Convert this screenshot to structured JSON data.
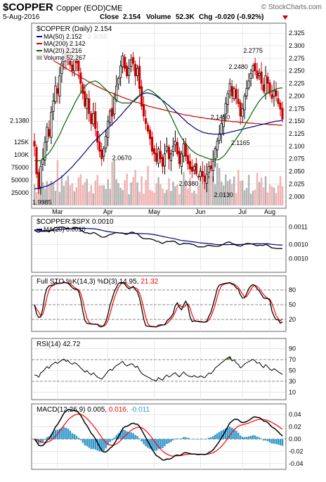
{
  "header": {
    "symbol": "$COPPER",
    "name": "Copper (EOD)",
    "exchange": "CME",
    "watermark": "© StockCharts.com",
    "date": "5-Aug-2016",
    "quote": {
      "close_label": "Close",
      "close": "2.154",
      "volume_label": "Volume",
      "volume": "52.3K",
      "chg_label": "Chg",
      "chg": "-0.020 (-0.92%)"
    }
  },
  "months": [
    "Mar",
    "Apr",
    "May",
    "Jun",
    "Jul",
    "Aug"
  ],
  "colors": {
    "up": "#000000",
    "down": "#cc0000",
    "ma50": "#000080",
    "ma200": "#cc0000",
    "ma20": "#006600",
    "vol_up": "#b4b4b4",
    "vol_down": "#f0b4b4",
    "stoch_d": "#ff0000",
    "hist": "#3399cc",
    "grid": "#d8d8d8"
  },
  "chart_data": [
    {
      "type": "candlestick",
      "title": "$COPPER (Daily) 2.154",
      "legend": [
        {
          "label": "MA(50) 2.152",
          "color": "#000080"
        },
        {
          "label": "MA(200) 2.142",
          "color": "#cc0000"
        },
        {
          "label": "MA(20) 2.216",
          "color": "#006600"
        },
        {
          "label": "Volume 52,267",
          "color": "#b4b4b4"
        }
      ],
      "y_ticks": [
        "2.325",
        "2.300",
        "2.275",
        "2.250",
        "2.225",
        "2.200",
        "2.175",
        "2.150",
        "2.125",
        "2.100",
        "2.075",
        "2.050",
        "2.025",
        "2.000"
      ],
      "ylim": [
        1.985,
        2.335
      ],
      "volume_ticks": [
        "125K",
        "100K",
        "75000",
        "50000",
        "25000"
      ],
      "annotations": [
        "2.1380",
        "2.3055",
        "2.0670",
        "2.0380",
        "2.1450",
        "2.0130",
        "2.2480",
        "2.2775",
        "2.1165",
        "1.9985"
      ],
      "close": [
        2.1,
        2.045,
        2.015,
        2.06,
        2.075,
        2.108,
        2.138,
        2.12,
        2.168,
        2.19,
        2.22,
        2.205,
        2.24,
        2.265,
        2.29,
        2.27,
        2.285,
        2.262,
        2.25,
        2.274,
        2.266,
        2.25,
        2.225,
        2.205,
        2.18,
        2.195,
        2.165,
        2.145,
        2.165,
        2.135,
        2.108,
        2.09,
        2.075,
        2.095,
        2.12,
        2.15,
        2.17,
        2.16,
        2.195,
        2.22,
        2.235,
        2.26,
        2.28,
        2.255,
        2.24,
        2.255,
        2.272,
        2.265,
        2.24,
        2.255,
        2.215,
        2.18,
        2.16,
        2.145,
        2.13,
        2.115,
        2.09,
        2.085,
        2.07,
        2.095,
        2.075,
        2.06,
        2.085,
        2.1,
        2.075,
        2.085,
        2.1,
        2.11,
        2.085,
        2.065,
        2.085,
        2.105,
        2.08,
        2.065,
        2.055,
        2.05,
        2.06,
        2.045,
        2.04,
        2.05,
        2.04,
        2.03,
        2.045,
        2.06,
        2.055,
        2.07,
        2.095,
        2.11,
        2.125,
        2.145,
        2.16,
        2.185,
        2.205,
        2.225,
        2.2,
        2.215,
        2.195,
        2.185,
        2.16,
        2.175,
        2.2,
        2.215,
        2.23,
        2.245,
        2.26,
        2.25,
        2.235,
        2.245,
        2.225,
        2.21,
        2.24,
        2.225,
        2.205,
        2.195,
        2.21,
        2.2,
        2.185,
        2.174,
        2.154
      ],
      "ma20": [
        2.071,
        2.072,
        2.071,
        2.072,
        2.074,
        2.078,
        2.083,
        2.087,
        2.093,
        2.1,
        2.108,
        2.115,
        2.123,
        2.132,
        2.142,
        2.15,
        2.159,
        2.167,
        2.175,
        2.184,
        2.192,
        2.199,
        2.206,
        2.213,
        2.218,
        2.223,
        2.226,
        2.228,
        2.229,
        2.23,
        2.228,
        2.225,
        2.221,
        2.217,
        2.213,
        2.209,
        2.204,
        2.199,
        2.195,
        2.192,
        2.189,
        2.187,
        2.186,
        2.186,
        2.186,
        2.186,
        2.187,
        2.189,
        2.192,
        2.196,
        2.201,
        2.205,
        2.208,
        2.211,
        2.213,
        2.212,
        2.209,
        2.206,
        2.202,
        2.199,
        2.195,
        2.19,
        2.184,
        2.176,
        2.168,
        2.16,
        2.151,
        2.142,
        2.133,
        2.124,
        2.117,
        2.111,
        2.105,
        2.1,
        2.095,
        2.091,
        2.088,
        2.085,
        2.083,
        2.081,
        2.08,
        2.078,
        2.077,
        2.075,
        2.074,
        2.073,
        2.073,
        2.073,
        2.074,
        2.077,
        2.08,
        2.085,
        2.091,
        2.097,
        2.103,
        2.109,
        2.115,
        2.121,
        2.127,
        2.134,
        2.141,
        2.148,
        2.155,
        2.163,
        2.17,
        2.177,
        2.184,
        2.19,
        2.195,
        2.199,
        2.203,
        2.206,
        2.208,
        2.21,
        2.212,
        2.214,
        2.215,
        2.216,
        2.216
      ],
      "ma50": [
        2.015,
        2.016,
        2.016,
        2.017,
        2.018,
        2.02,
        2.021,
        2.023,
        2.025,
        2.027,
        2.03,
        2.033,
        2.036,
        2.039,
        2.043,
        2.047,
        2.051,
        2.055,
        2.059,
        2.064,
        2.069,
        2.073,
        2.078,
        2.083,
        2.088,
        2.093,
        2.098,
        2.103,
        2.108,
        2.112,
        2.116,
        2.12,
        2.124,
        2.128,
        2.132,
        2.136,
        2.14,
        2.144,
        2.148,
        2.152,
        2.157,
        2.161,
        2.166,
        2.171,
        2.176,
        2.18,
        2.185,
        2.19,
        2.194,
        2.198,
        2.201,
        2.203,
        2.205,
        2.206,
        2.206,
        2.205,
        2.204,
        2.202,
        2.2,
        2.197,
        2.194,
        2.191,
        2.188,
        2.184,
        2.181,
        2.177,
        2.174,
        2.17,
        2.166,
        2.162,
        2.158,
        2.154,
        2.15,
        2.146,
        2.143,
        2.14,
        2.137,
        2.134,
        2.132,
        2.13,
        2.128,
        2.127,
        2.126,
        2.125,
        2.125,
        2.124,
        2.124,
        2.124,
        2.124,
        2.124,
        2.125,
        2.126,
        2.127,
        2.128,
        2.129,
        2.13,
        2.131,
        2.132,
        2.133,
        2.134,
        2.135,
        2.136,
        2.137,
        2.138,
        2.139,
        2.14,
        2.141,
        2.142,
        2.143,
        2.144,
        2.145,
        2.146,
        2.147,
        2.148,
        2.149,
        2.15,
        2.15,
        2.151,
        2.152
      ],
      "ma200": [
        2.292,
        2.29,
        2.288,
        2.285,
        2.283,
        2.281,
        2.278,
        2.276,
        2.273,
        2.271,
        2.268,
        2.266,
        2.263,
        2.261,
        2.258,
        2.255,
        2.253,
        2.25,
        2.248,
        2.245,
        2.243,
        2.24,
        2.238,
        2.235,
        2.233,
        2.23,
        2.228,
        2.226,
        2.223,
        2.221,
        2.219,
        2.217,
        2.215,
        2.213,
        2.211,
        2.209,
        2.207,
        2.206,
        2.204,
        2.202,
        2.201,
        2.199,
        2.197,
        2.196,
        2.194,
        2.193,
        2.191,
        2.19,
        2.188,
        2.187,
        2.186,
        2.184,
        2.183,
        2.182,
        2.18,
        2.179,
        2.178,
        2.177,
        2.176,
        2.175,
        2.174,
        2.173,
        2.172,
        2.171,
        2.17,
        2.169,
        2.168,
        2.167,
        2.166,
        2.165,
        2.164,
        2.163,
        2.162,
        2.162,
        2.161,
        2.16,
        2.159,
        2.159,
        2.158,
        2.157,
        2.157,
        2.156,
        2.155,
        2.155,
        2.154,
        2.154,
        2.153,
        2.153,
        2.152,
        2.152,
        2.151,
        2.151,
        2.15,
        2.15,
        2.149,
        2.149,
        2.149,
        2.148,
        2.148,
        2.147,
        2.147,
        2.147,
        2.146,
        2.146,
        2.146,
        2.145,
        2.145,
        2.145,
        2.144,
        2.144,
        2.144,
        2.144,
        2.143,
        2.143,
        2.143,
        2.143,
        2.142,
        2.142,
        2.142
      ]
    },
    {
      "type": "line",
      "title": "$COPPER:$SPX 0.0010",
      "legend": [
        {
          "label": "MA(20) 0.0010",
          "color": "#000080"
        }
      ],
      "y_ticks": [
        "0.0011",
        "0.0010",
        "0.0010"
      ]
    },
    {
      "type": "line",
      "title": "Full STO %K(14,3) %D(3) 14.95, 21.32",
      "title_parts": [
        "Full STO %K(14,3) %D(3) 14.95, ",
        "21.32"
      ],
      "y_ticks": [
        "80",
        "50",
        "20"
      ],
      "ylim": [
        0,
        100
      ]
    },
    {
      "type": "line",
      "title": "RSI(14) 42.72",
      "y_ticks": [
        "90",
        "70",
        "50",
        "30",
        "10"
      ],
      "ylim": [
        0,
        100
      ]
    },
    {
      "type": "line",
      "title": "MACD(12,26,9) 0.005, 0.016, -0.011",
      "title_parts": [
        "MACD(12,26,9) 0.005, ",
        "0.016",
        ", -0.011"
      ],
      "y_ticks": [
        "0.04",
        "0.02",
        "0.00",
        "-0.02",
        "-0.04"
      ],
      "ylim": [
        -0.046,
        0.046
      ]
    }
  ]
}
